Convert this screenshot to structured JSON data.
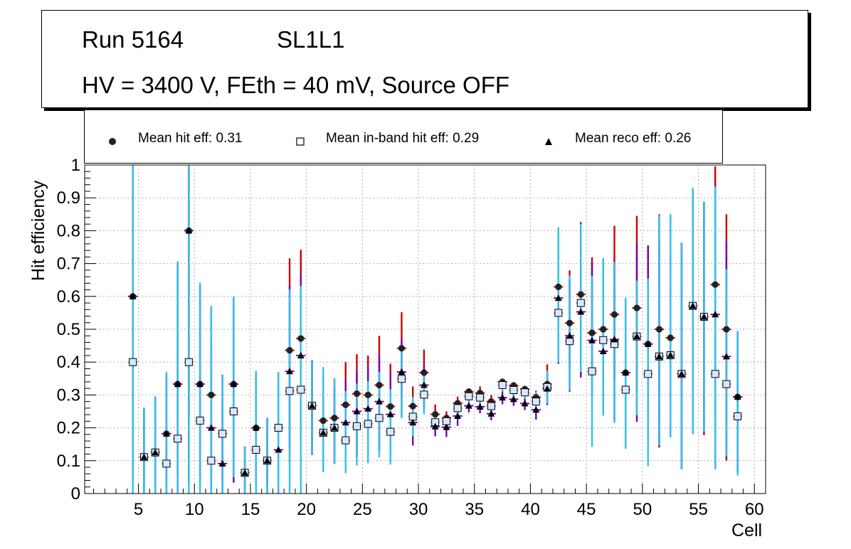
{
  "header": {
    "run": "Run 5164",
    "layer": "SL1L1",
    "conditions": "HV = 3400 V, FEth = 40 mV, Source OFF"
  },
  "legend": {
    "items": [
      {
        "label": "Mean hit  eff: 0.31",
        "marker": "circle"
      },
      {
        "label": "Mean in-band hit eff: 0.29",
        "marker": "open-square"
      },
      {
        "label": "Mean reco eff: 0.26",
        "marker": "triangle"
      }
    ]
  },
  "colors": {
    "hit_err": "#cc0000",
    "inband_err": "#2ec4f2",
    "reco_err": "#7a00b4",
    "square_fill": "#dde4ff"
  },
  "chart_data": {
    "type": "scatter",
    "title": "",
    "xlabel": "Cell",
    "ylabel": "Hit efficiency",
    "xlim": [
      0.2,
      61.0
    ],
    "ylim": [
      0,
      1
    ],
    "x_ticks": [
      5,
      10,
      15,
      20,
      25,
      30,
      35,
      40,
      45,
      50,
      55,
      60
    ],
    "y_ticks": [
      0,
      0.1,
      0.2,
      0.3,
      0.4,
      0.5,
      0.6,
      0.7,
      0.8,
      0.9,
      1
    ],
    "y_tick_labels": [
      "0",
      "0.1",
      "0.2",
      "0.3",
      "0.4",
      "0.5",
      "0.6",
      "0.7",
      "0.8",
      "0.9",
      "1"
    ],
    "grid": true,
    "cells": [
      4.5,
      5.5,
      6.5,
      7.5,
      8.5,
      9.5,
      10.5,
      11.5,
      12.5,
      13.5,
      14.5,
      15.5,
      16.5,
      17.5,
      18.5,
      19.5,
      20.5,
      21.5,
      22.5,
      23.5,
      24.5,
      25.5,
      26.5,
      27.5,
      28.5,
      29.5,
      30.5,
      31.5,
      32.5,
      33.5,
      34.5,
      35.5,
      36.5,
      37.5,
      38.5,
      39.5,
      40.5,
      41.5,
      42.5,
      43.5,
      44.5,
      45.5,
      46.5,
      47.5,
      48.5,
      49.5,
      50.5,
      51.5,
      52.5,
      53.5,
      54.5,
      55.5,
      56.5,
      57.5,
      58.5
    ],
    "series": [
      {
        "name": "Mean hit  eff: 0.31",
        "marker": "circle",
        "values": [
          0.6,
          0.111,
          0.125,
          0.182,
          0.333,
          0.8,
          0.333,
          0.3,
          0.182,
          0.333,
          0.063,
          0.2,
          0.1,
          0.2,
          0.436,
          0.472,
          0.267,
          0.222,
          0.23,
          0.27,
          0.304,
          0.3,
          0.33,
          0.265,
          0.442,
          0.266,
          0.368,
          0.241,
          0.23,
          0.275,
          0.31,
          0.306,
          0.28,
          0.34,
          0.329,
          0.318,
          0.293,
          0.333,
          0.629,
          0.519,
          0.606,
          0.489,
          0.5,
          0.545,
          0.368,
          0.565,
          0.455,
          0.5,
          0.474,
          0.364,
          0.571,
          0.538,
          0.636,
          0.5,
          0.294
        ],
        "err_low": [
          0.38,
          0.09,
          0.1,
          0.14,
          0.28,
          0.56,
          0.28,
          0.24,
          0.15,
          0.28,
          0.05,
          0.16,
          0.08,
          0.16,
          0.3,
          0.3,
          0.15,
          0.15,
          0.14,
          0.16,
          0.19,
          0.18,
          0.2,
          0.15,
          0.15,
          0.1,
          0.12,
          0.03,
          0.03,
          0.03,
          0.02,
          0.03,
          0.04,
          0.02,
          0.02,
          0.02,
          0.04,
          0.04,
          0.1,
          0.13,
          0.13,
          0.14,
          0.2,
          0.2,
          0.22,
          0.25,
          0.3,
          0.36,
          0.3,
          0.29,
          0.0,
          0.36,
          0.55,
          0.4,
          0.23
        ],
        "err_high": [
          0.4,
          0.15,
          0.17,
          0.18,
          0.37,
          0.2,
          0.3,
          0.27,
          0.18,
          0.26,
          0.08,
          0.17,
          0.13,
          0.17,
          0.28,
          0.27,
          0.14,
          0.13,
          0.12,
          0.13,
          0.12,
          0.12,
          0.15,
          0.13,
          0.11,
          0.06,
          0.07,
          0.03,
          0.02,
          0.02,
          0.01,
          0.02,
          0.02,
          0.01,
          0.01,
          0.01,
          0.02,
          0.06,
          0.18,
          0.16,
          0.22,
          0.23,
          0.21,
          0.27,
          0.22,
          0.28,
          0.3,
          0.35,
          0.37,
          0.4,
          0.35,
          0.35,
          0.36,
          0.35,
          0.2
        ]
      },
      {
        "name": "Mean in-band hit eff: 0.29",
        "marker": "open-square",
        "values": [
          0.4,
          0.111,
          0.125,
          0.091,
          0.167,
          0.4,
          0.222,
          0.1,
          0.182,
          0.25,
          0.063,
          0.133,
          0.1,
          0.2,
          0.312,
          0.316,
          0.267,
          0.185,
          0.2,
          0.162,
          0.205,
          0.212,
          0.23,
          0.188,
          0.349,
          0.234,
          0.301,
          0.217,
          0.22,
          0.26,
          0.296,
          0.292,
          0.266,
          0.33,
          0.315,
          0.308,
          0.28,
          0.324,
          0.55,
          0.464,
          0.58,
          0.372,
          0.467,
          0.455,
          0.316,
          0.478,
          0.364,
          0.417,
          0.421,
          0.364,
          0.571,
          0.538,
          0.364,
          0.333,
          0.235
        ],
        "err_low": [
          0.4,
          0.11,
          0.125,
          0.09,
          0.167,
          0.4,
          0.222,
          0.1,
          0.182,
          0.2,
          0.063,
          0.133,
          0.1,
          0.2,
          0.31,
          0.316,
          0.15,
          0.12,
          0.11,
          0.1,
          0.12,
          0.12,
          0.12,
          0.1,
          0.12,
          0.06,
          0.06,
          0.02,
          0.02,
          0.02,
          0.02,
          0.02,
          0.02,
          0.02,
          0.02,
          0.02,
          0.03,
          0.05,
          0.15,
          0.15,
          0.21,
          0.23,
          0.23,
          0.24,
          0.18,
          0.24,
          0.28,
          0.27,
          0.25,
          0.29,
          0.39,
          0.35,
          0.29,
          0.22,
          0.18
        ],
        "err_high": [
          0.6,
          0.15,
          0.17,
          0.28,
          0.54,
          0.6,
          0.42,
          0.47,
          0.18,
          0.35,
          0.08,
          0.24,
          0.13,
          0.17,
          0.31,
          0.316,
          0.14,
          0.2,
          0.15,
          0.15,
          0.13,
          0.13,
          0.14,
          0.13,
          0.1,
          0.06,
          0.06,
          0.02,
          0.02,
          0.02,
          0.02,
          0.02,
          0.02,
          0.02,
          0.02,
          0.02,
          0.03,
          0.05,
          0.26,
          0.2,
          0.24,
          0.29,
          0.25,
          0.25,
          0.28,
          0.17,
          0.29,
          0.43,
          0.43,
          0.4,
          0.36,
          0.35,
          0.57,
          0.35,
          0.26
        ]
      },
      {
        "name": "Mean reco eff: 0.26",
        "marker": "triangle",
        "values": [
          0.6,
          0.111,
          0.125,
          0.182,
          0.333,
          0.8,
          0.333,
          0.2,
          0.091,
          0.333,
          0.063,
          0.2,
          0.1,
          0.133,
          0.372,
          0.42,
          0.267,
          0.185,
          0.2,
          0.216,
          0.25,
          0.258,
          0.28,
          0.241,
          0.37,
          0.216,
          0.33,
          0.204,
          0.202,
          0.236,
          0.267,
          0.264,
          0.243,
          0.292,
          0.287,
          0.274,
          0.255,
          0.319,
          0.595,
          0.48,
          0.553,
          0.466,
          0.433,
          0.469,
          0.368,
          0.478,
          0.455,
          0.417,
          0.421,
          0.364,
          0.571,
          0.538,
          0.545,
          0.417,
          0.294
        ],
        "err_low": [
          0.56,
          0.11,
          0.125,
          0.18,
          0.33,
          0.77,
          0.31,
          0.2,
          0.091,
          0.3,
          0.063,
          0.17,
          0.1,
          0.133,
          0.28,
          0.25,
          0.15,
          0.12,
          0.11,
          0.12,
          0.14,
          0.14,
          0.15,
          0.13,
          0.13,
          0.07,
          0.07,
          0.03,
          0.03,
          0.03,
          0.02,
          0.02,
          0.02,
          0.02,
          0.02,
          0.02,
          0.03,
          0.05,
          0.2,
          0.17,
          0.2,
          0.17,
          0.19,
          0.25,
          0.23,
          0.26,
          0.2,
          0.27,
          0.24,
          0.29,
          0.39,
          0.35,
          0.47,
          0.31,
          0.23
        ],
        "err_high": [
          0.4,
          0.15,
          0.17,
          0.18,
          0.37,
          0.2,
          0.3,
          0.25,
          0.18,
          0.26,
          0.08,
          0.17,
          0.13,
          0.23,
          0.26,
          0.25,
          0.14,
          0.12,
          0.12,
          0.13,
          0.12,
          0.13,
          0.14,
          0.13,
          0.1,
          0.06,
          0.06,
          0.02,
          0.02,
          0.02,
          0.02,
          0.02,
          0.02,
          0.02,
          0.02,
          0.02,
          0.03,
          0.05,
          0.16,
          0.17,
          0.2,
          0.24,
          0.2,
          0.24,
          0.22,
          0.28,
          0.3,
          0.35,
          0.37,
          0.4,
          0.35,
          0.35,
          0.39,
          0.35,
          0.2
        ]
      }
    ]
  }
}
